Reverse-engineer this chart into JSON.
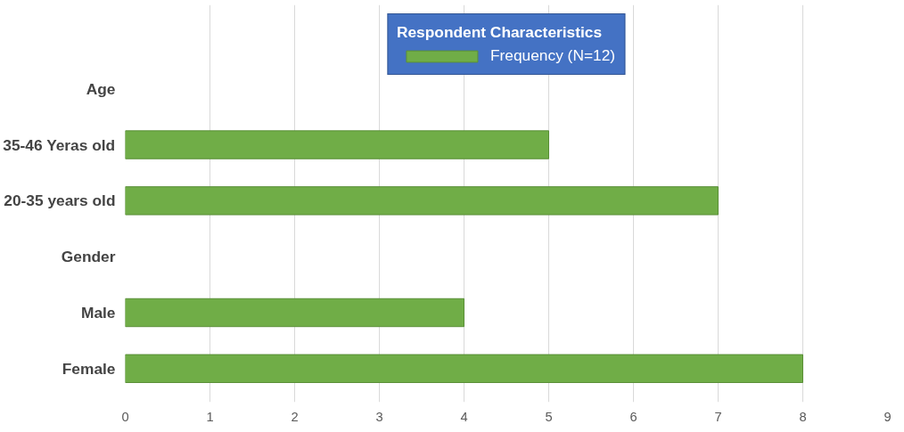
{
  "chart_data": {
    "type": "bar",
    "orientation": "horizontal",
    "legend_title": "Respondent Characteristics",
    "categories": [
      "Age",
      "35-46 Yeras old",
      "20-35 years old",
      "Gender",
      "Male",
      "Female"
    ],
    "series": [
      {
        "name": "Frequency (N=12)",
        "color": "#70ad47",
        "values": [
          null,
          5,
          7,
          null,
          4,
          8
        ]
      }
    ],
    "xlim": [
      0,
      9
    ],
    "xticks": [
      0,
      1,
      2,
      3,
      4,
      5,
      6,
      7,
      8,
      9
    ],
    "grid": "x",
    "legend": "top"
  }
}
